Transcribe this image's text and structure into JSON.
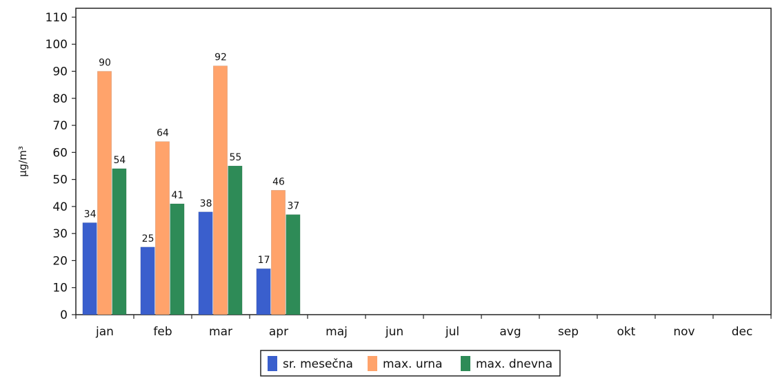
{
  "chart_data": {
    "type": "bar",
    "ylabel": "µg/m³",
    "xlabel": "",
    "title": "",
    "ylim": [
      0,
      110
    ],
    "yticks": [
      0,
      10,
      20,
      30,
      40,
      50,
      60,
      70,
      80,
      90,
      100,
      110
    ],
    "grid": false,
    "legend_position": "bottom-center",
    "categories": [
      "jan",
      "feb",
      "mar",
      "apr",
      "maj",
      "jun",
      "jul",
      "avg",
      "sep",
      "okt",
      "nov",
      "dec"
    ],
    "series": [
      {
        "name": "sr. mesečna",
        "color": "#3a5fcd",
        "values": [
          34,
          25,
          38,
          17,
          null,
          null,
          null,
          null,
          null,
          null,
          null,
          null
        ]
      },
      {
        "name": "max. urna",
        "color": "#ffa36b",
        "values": [
          90,
          64,
          92,
          46,
          null,
          null,
          null,
          null,
          null,
          null,
          null,
          null
        ]
      },
      {
        "name": "max. dnevna",
        "color": "#2e8b57",
        "values": [
          54,
          41,
          55,
          37,
          null,
          null,
          null,
          null,
          null,
          null,
          null,
          null
        ]
      }
    ]
  }
}
